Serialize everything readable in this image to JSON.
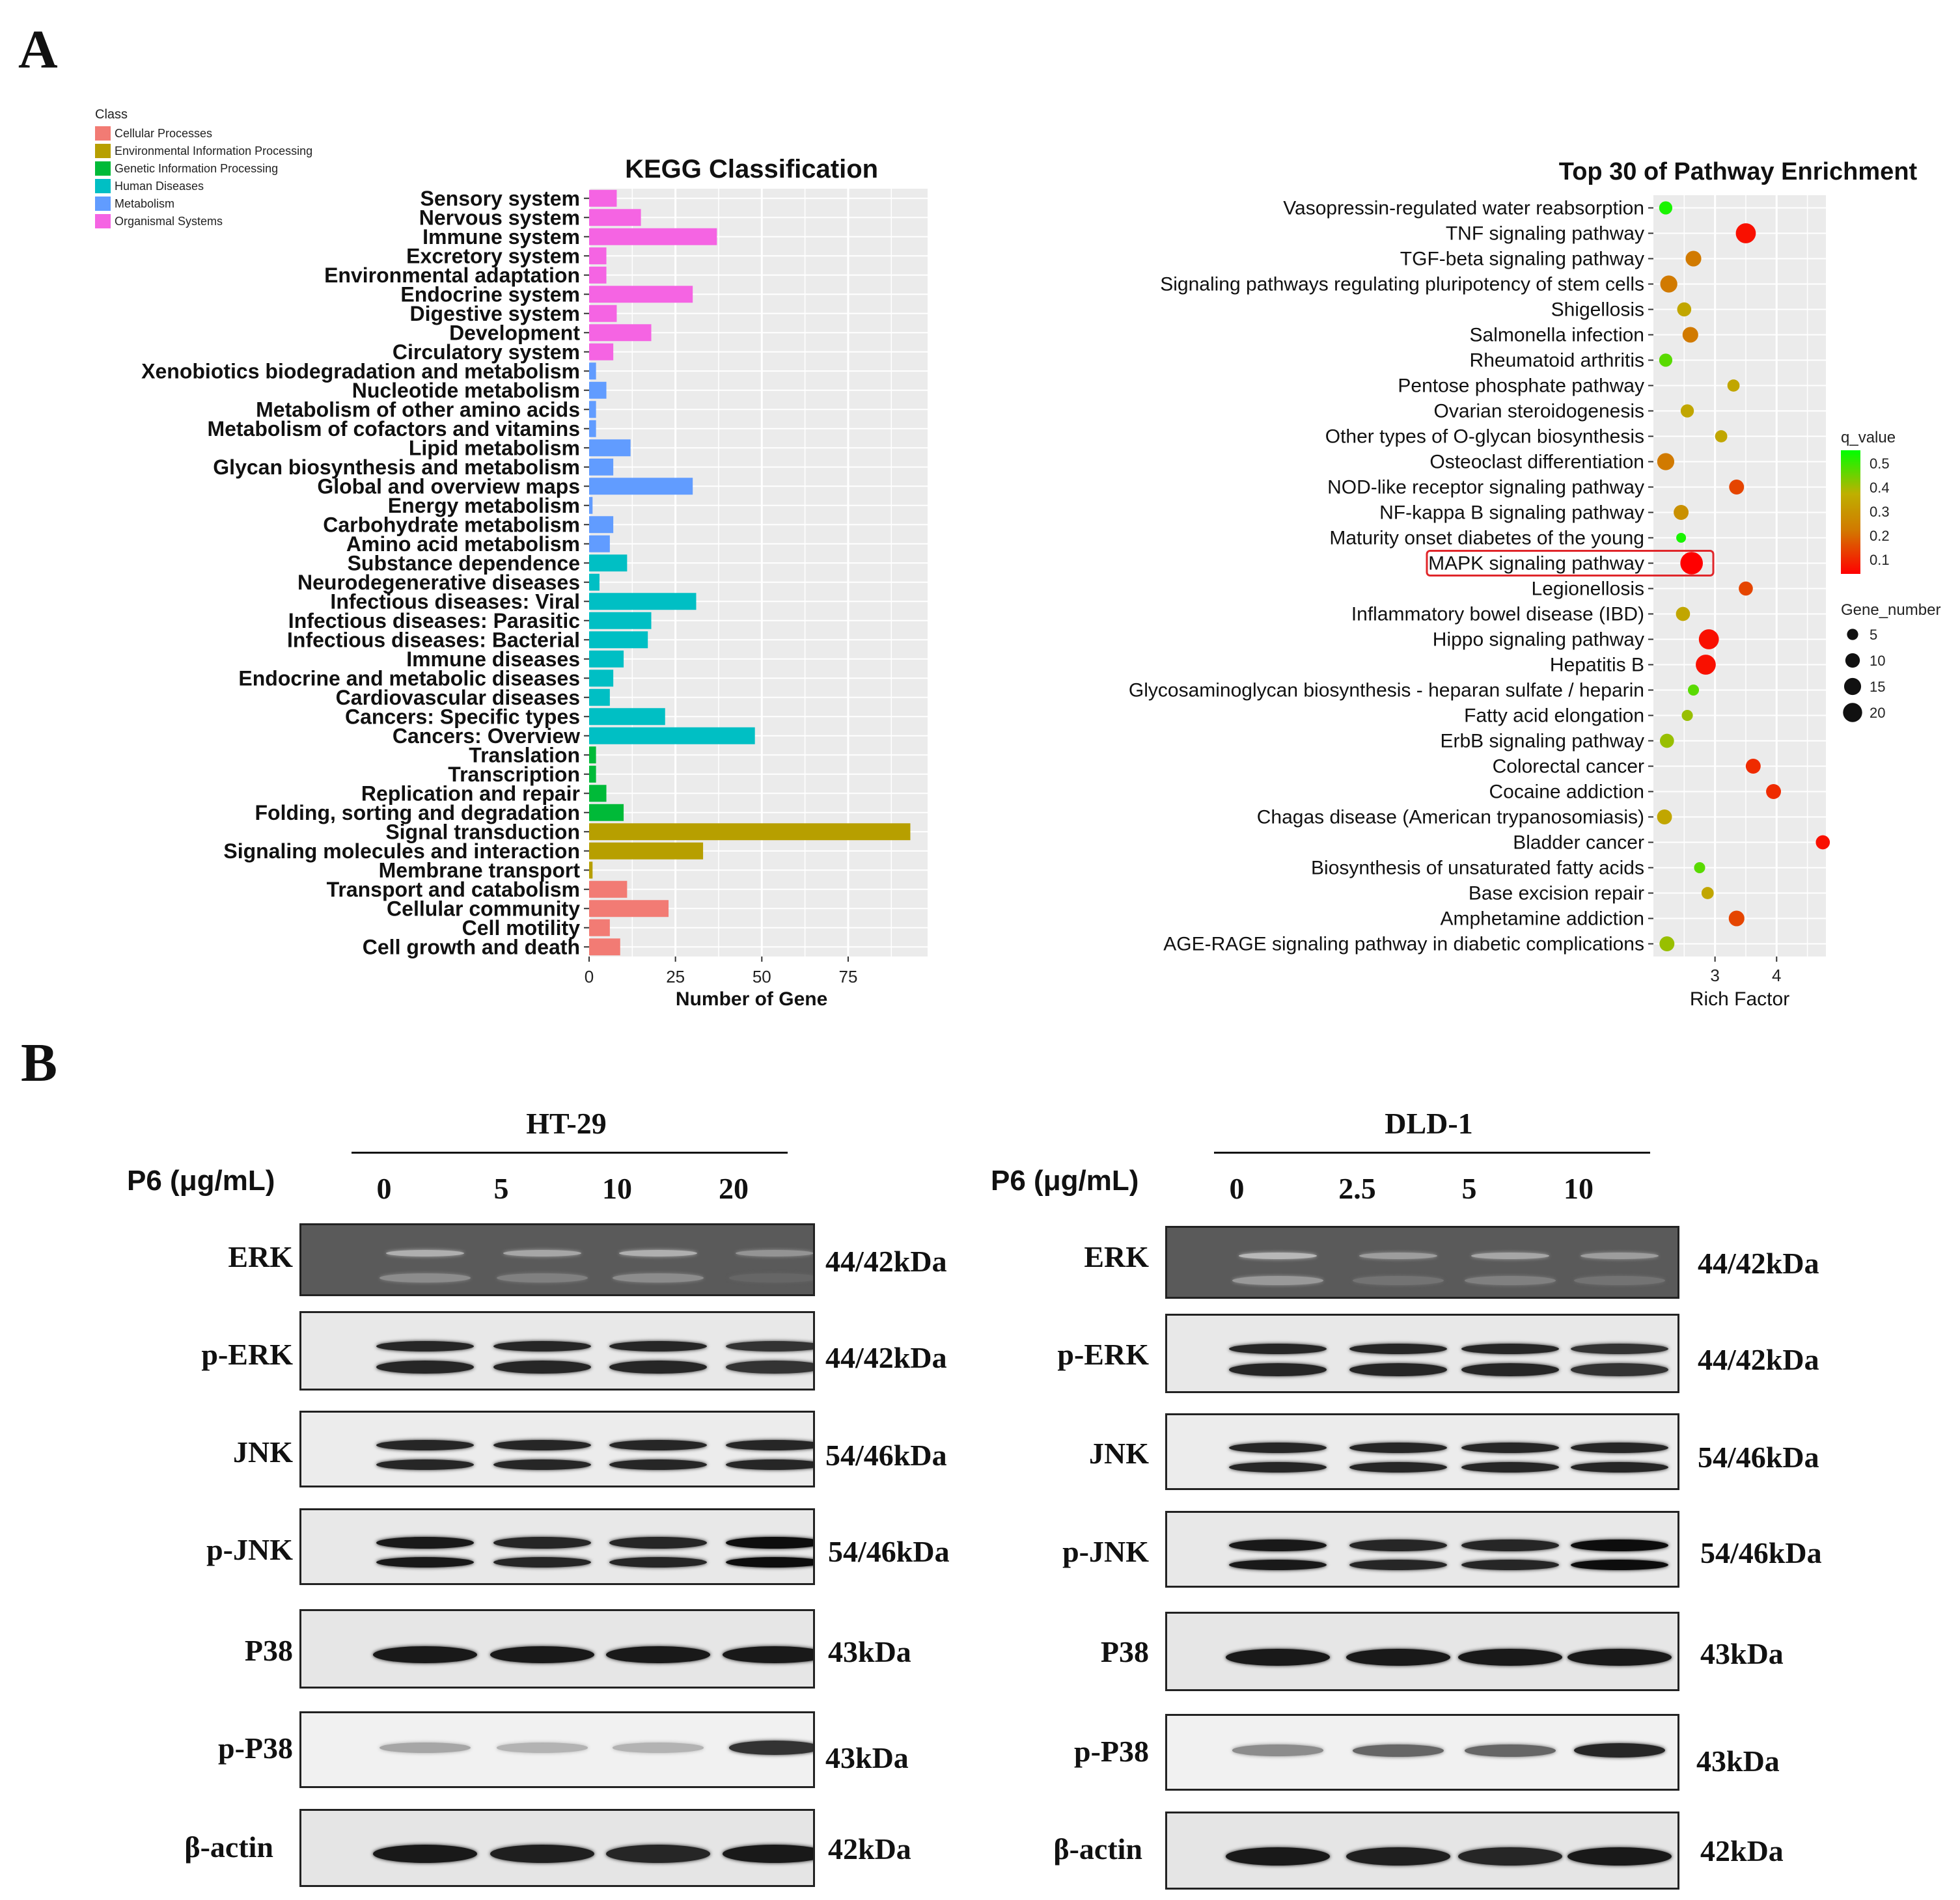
{
  "panels": {
    "a": "A",
    "b": "B"
  },
  "kegg_legend": {
    "title": "Class",
    "items": [
      {
        "label": "Cellular Processes",
        "color": "#F27B74"
      },
      {
        "label": "Environmental Information Processing",
        "color": "#B79F00"
      },
      {
        "label": "Genetic Information Processing",
        "color": "#00BA38"
      },
      {
        "label": "Human Diseases",
        "color": "#00BFC4"
      },
      {
        "label": "Metabolism",
        "color": "#619CFF"
      },
      {
        "label": "Organismal Systems",
        "color": "#F564E3"
      }
    ]
  },
  "chart_data": [
    {
      "type": "bar",
      "orientation": "horizontal",
      "title": "KEGG Classification",
      "xlabel": "Number of Gene",
      "ylabel": "",
      "xlim": [
        0,
        98
      ],
      "xticks": [
        0,
        25,
        50,
        75
      ],
      "grid": true,
      "legend_position": "top-left",
      "categories": [
        "Sensory system",
        "Nervous system",
        "Immune system",
        "Excretory system",
        "Environmental adaptation",
        "Endocrine system",
        "Digestive system",
        "Development",
        "Circulatory system",
        "Xenobiotics biodegradation and metabolism",
        "Nucleotide metabolism",
        "Metabolism of other amino acids",
        "Metabolism of cofactors and vitamins",
        "Lipid metabolism",
        "Glycan biosynthesis and metabolism",
        "Global and overview maps",
        "Energy metabolism",
        "Carbohydrate metabolism",
        "Amino acid metabolism",
        "Substance dependence",
        "Neurodegenerative diseases",
        "Infectious diseases: Viral",
        "Infectious diseases: Parasitic",
        "Infectious diseases: Bacterial",
        "Immune diseases",
        "Endocrine and metabolic diseases",
        "Cardiovascular diseases",
        "Cancers: Specific types",
        "Cancers: Overview",
        "Translation",
        "Transcription",
        "Replication and repair",
        "Folding, sorting and degradation",
        "Signal transduction",
        "Signaling molecules and interaction",
        "Membrane transport",
        "Transport and catabolism",
        "Cellular community",
        "Cell motility",
        "Cell growth and death"
      ],
      "values": [
        8,
        15,
        37,
        5,
        5,
        30,
        8,
        18,
        7,
        2,
        5,
        2,
        2,
        12,
        7,
        30,
        1,
        7,
        6,
        11,
        3,
        31,
        18,
        17,
        10,
        7,
        6,
        22,
        48,
        2,
        2,
        5,
        10,
        93,
        33,
        1,
        11,
        23,
        6,
        9
      ],
      "classes": [
        "Organismal Systems",
        "Organismal Systems",
        "Organismal Systems",
        "Organismal Systems",
        "Organismal Systems",
        "Organismal Systems",
        "Organismal Systems",
        "Organismal Systems",
        "Organismal Systems",
        "Metabolism",
        "Metabolism",
        "Metabolism",
        "Metabolism",
        "Metabolism",
        "Metabolism",
        "Metabolism",
        "Metabolism",
        "Metabolism",
        "Metabolism",
        "Human Diseases",
        "Human Diseases",
        "Human Diseases",
        "Human Diseases",
        "Human Diseases",
        "Human Diseases",
        "Human Diseases",
        "Human Diseases",
        "Human Diseases",
        "Human Diseases",
        "Genetic Information Processing",
        "Genetic Information Processing",
        "Genetic Information Processing",
        "Genetic Information Processing",
        "Environmental Information Processing",
        "Environmental Information Processing",
        "Environmental Information Processing",
        "Cellular Processes",
        "Cellular Processes",
        "Cellular Processes",
        "Cellular Processes"
      ]
    },
    {
      "type": "scatter",
      "title": "Top 30 of Pathway Enrichment",
      "xlabel": "Rich Factor",
      "ylabel": "",
      "xlim": [
        2.0,
        4.8
      ],
      "xticks": [
        3,
        4
      ],
      "grid": true,
      "legend_position": "right",
      "highlighted": "MAPK signaling pathway",
      "categories": [
        "Vasopressin-regulated water reabsorption",
        "TNF signaling pathway",
        "TGF-beta signaling pathway",
        "Signaling pathways regulating pluripotency of stem cells",
        "Shigellosis",
        "Salmonella infection",
        "Rheumatoid arthritis",
        "Pentose phosphate pathway",
        "Ovarian steroidogenesis",
        "Other types of O-glycan biosynthesis",
        "Osteoclast differentiation",
        "NOD-like receptor signaling pathway",
        "NF-kappa B signaling pathway",
        "Maturity onset diabetes of the young",
        "MAPK signaling pathway",
        "Legionellosis",
        "Inflammatory bowel disease (IBD)",
        "Hippo signaling pathway",
        "Hepatitis B",
        "Glycosaminoglycan biosynthesis - heparan sulfate / heparin",
        "Fatty acid elongation",
        "ErbB signaling pathway",
        "Colorectal cancer",
        "Cocaine addiction",
        "Chagas disease (American trypanosomiasis)",
        "Bladder cancer",
        "Biosynthesis of unsaturated fatty acids",
        "Base excision repair",
        "Amphetamine addiction",
        "AGE-RAGE signaling pathway in diabetic complications"
      ],
      "rich_factor": [
        2.2,
        3.5,
        2.65,
        2.25,
        2.5,
        2.6,
        2.2,
        3.3,
        2.55,
        3.1,
        2.2,
        3.35,
        2.45,
        2.45,
        2.62,
        3.5,
        2.48,
        2.9,
        2.85,
        2.65,
        2.55,
        2.22,
        3.62,
        3.95,
        2.18,
        4.75,
        2.75,
        2.88,
        3.35,
        2.22
      ],
      "q_value": [
        0.5,
        0.05,
        0.25,
        0.25,
        0.35,
        0.25,
        0.45,
        0.35,
        0.35,
        0.35,
        0.25,
        0.15,
        0.3,
        0.5,
        0.02,
        0.15,
        0.35,
        0.05,
        0.05,
        0.45,
        0.4,
        0.4,
        0.1,
        0.1,
        0.35,
        0.05,
        0.45,
        0.35,
        0.15,
        0.4
      ],
      "gene_number": [
        5,
        15,
        8,
        10,
        6,
        8,
        5,
        4,
        5,
        4,
        10,
        7,
        7,
        2,
        20,
        6,
        6,
        15,
        15,
        3,
        3,
        6,
        7,
        7,
        7,
        6,
        3,
        4,
        8,
        7
      ],
      "legend": {
        "color_title": "q_value",
        "color_ticks": [
          0.5,
          0.4,
          0.3,
          0.2,
          0.1
        ],
        "size_title": "Gene_number",
        "size_ticks": [
          5,
          10,
          15,
          20
        ]
      }
    }
  ],
  "western": {
    "treatment_label": "P6 (μg/mL)",
    "row_labels": [
      "ERK",
      "p-ERK",
      "JNK",
      "p-JNK",
      "P38",
      "p-P38",
      "β-actin"
    ],
    "kda": [
      "44/42kDa",
      "44/42kDa",
      "54/46kDa",
      "54/46kDa",
      "43kDa",
      "43kDa",
      "42kDa"
    ],
    "cell_lines": [
      {
        "name": "HT-29",
        "doses": [
          "0",
          "5",
          "10",
          "20"
        ]
      },
      {
        "name": "DLD-1",
        "doses": [
          "0",
          "2.5",
          "5",
          "10"
        ]
      }
    ]
  }
}
